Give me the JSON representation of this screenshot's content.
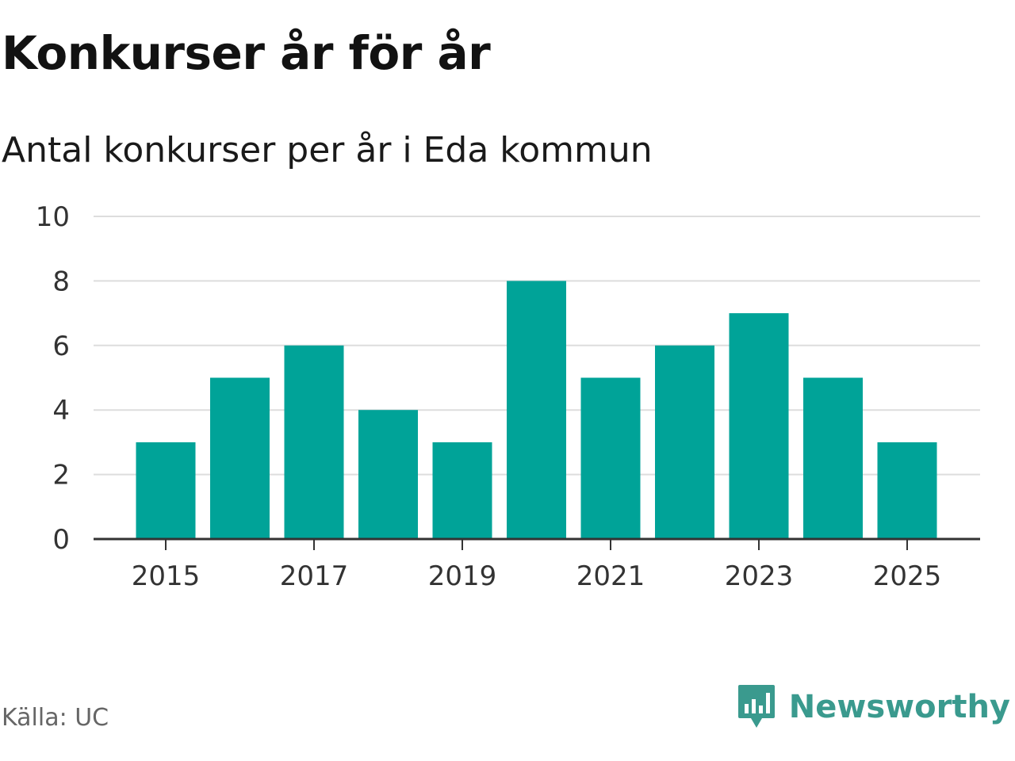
{
  "title": "Konkurser år för år",
  "subtitle": "Antal konkurser per år i Eda kommun",
  "source": "Källa: UC",
  "brand": {
    "name": "Newsworthy",
    "icon": "newsworthy-logo-icon",
    "color": "#3a9a8e"
  },
  "chart_data": {
    "type": "bar",
    "categories": [
      "2015",
      "2016",
      "2017",
      "2018",
      "2019",
      "2020",
      "2021",
      "2022",
      "2023",
      "2024",
      "2025"
    ],
    "values": [
      3,
      5,
      6,
      4,
      3,
      8,
      5,
      6,
      7,
      5,
      3
    ],
    "x_tick_labels": [
      "2015",
      "2017",
      "2019",
      "2021",
      "2023",
      "2025"
    ],
    "y_ticks": [
      0,
      2,
      4,
      6,
      8,
      10
    ],
    "ylim": [
      0,
      10
    ],
    "grid": true,
    "bar_color": "#00a398",
    "xlabel": "",
    "ylabel": ""
  }
}
